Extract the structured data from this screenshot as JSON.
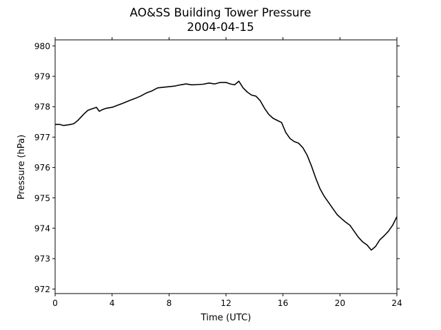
{
  "chart_data": {
    "type": "line",
    "title": "AO&SS Building Tower Pressure",
    "subtitle": "2004-04-15",
    "xlabel": "Time (UTC)",
    "ylabel": "Pressure (hPa)",
    "xlim": [
      0,
      24
    ],
    "ylim": [
      971.85,
      980.2
    ],
    "xticks": [
      "0",
      "4",
      "8",
      "12",
      "16",
      "20",
      "24"
    ],
    "yticks": [
      "972",
      "973",
      "974",
      "975",
      "976",
      "977",
      "978",
      "979",
      "980"
    ],
    "grid": false,
    "legend": "none",
    "line_color": "#000000",
    "series": [
      {
        "x": [
          0,
          0.3,
          0.6,
          1.0,
          1.3,
          1.6,
          2.0,
          2.3,
          2.6,
          2.9,
          3.1,
          3.3,
          3.6,
          4.0,
          4.4,
          4.8,
          5.2,
          5.6,
          6.0,
          6.4,
          6.8,
          7.2,
          7.6,
          8.0,
          8.4,
          8.8,
          9.2,
          9.6,
          10.0,
          10.4,
          10.8,
          11.2,
          11.6,
          12.0,
          12.3,
          12.6,
          12.9,
          13.2,
          13.5,
          13.8,
          14.1,
          14.4,
          14.7,
          15.0,
          15.3,
          15.6,
          15.9,
          16.2,
          16.5,
          16.8,
          17.1,
          17.4,
          17.7,
          18.0,
          18.3,
          18.6,
          18.9,
          19.2,
          19.5,
          19.8,
          20.1,
          20.4,
          20.7,
          21.0,
          21.3,
          21.6,
          21.9,
          22.2,
          22.5,
          22.8,
          23.1,
          23.4,
          23.7,
          24.0
        ],
        "y": [
          977.42,
          977.42,
          977.38,
          977.41,
          977.44,
          977.55,
          977.75,
          977.88,
          977.93,
          977.98,
          977.85,
          977.9,
          977.95,
          977.98,
          978.05,
          978.12,
          978.2,
          978.27,
          978.35,
          978.45,
          978.52,
          978.62,
          978.64,
          978.66,
          978.68,
          978.72,
          978.75,
          978.72,
          978.73,
          978.74,
          978.78,
          978.75,
          978.8,
          978.8,
          978.75,
          978.72,
          978.84,
          978.62,
          978.48,
          978.38,
          978.35,
          978.2,
          977.95,
          977.75,
          977.62,
          977.55,
          977.48,
          977.15,
          976.95,
          976.85,
          976.8,
          976.65,
          976.4,
          976.05,
          975.65,
          975.3,
          975.05,
          974.85,
          974.65,
          974.45,
          974.32,
          974.2,
          974.1,
          973.9,
          973.7,
          973.55,
          973.45,
          973.28,
          973.4,
          973.62,
          973.75,
          973.9,
          974.1,
          974.38
        ]
      }
    ]
  }
}
